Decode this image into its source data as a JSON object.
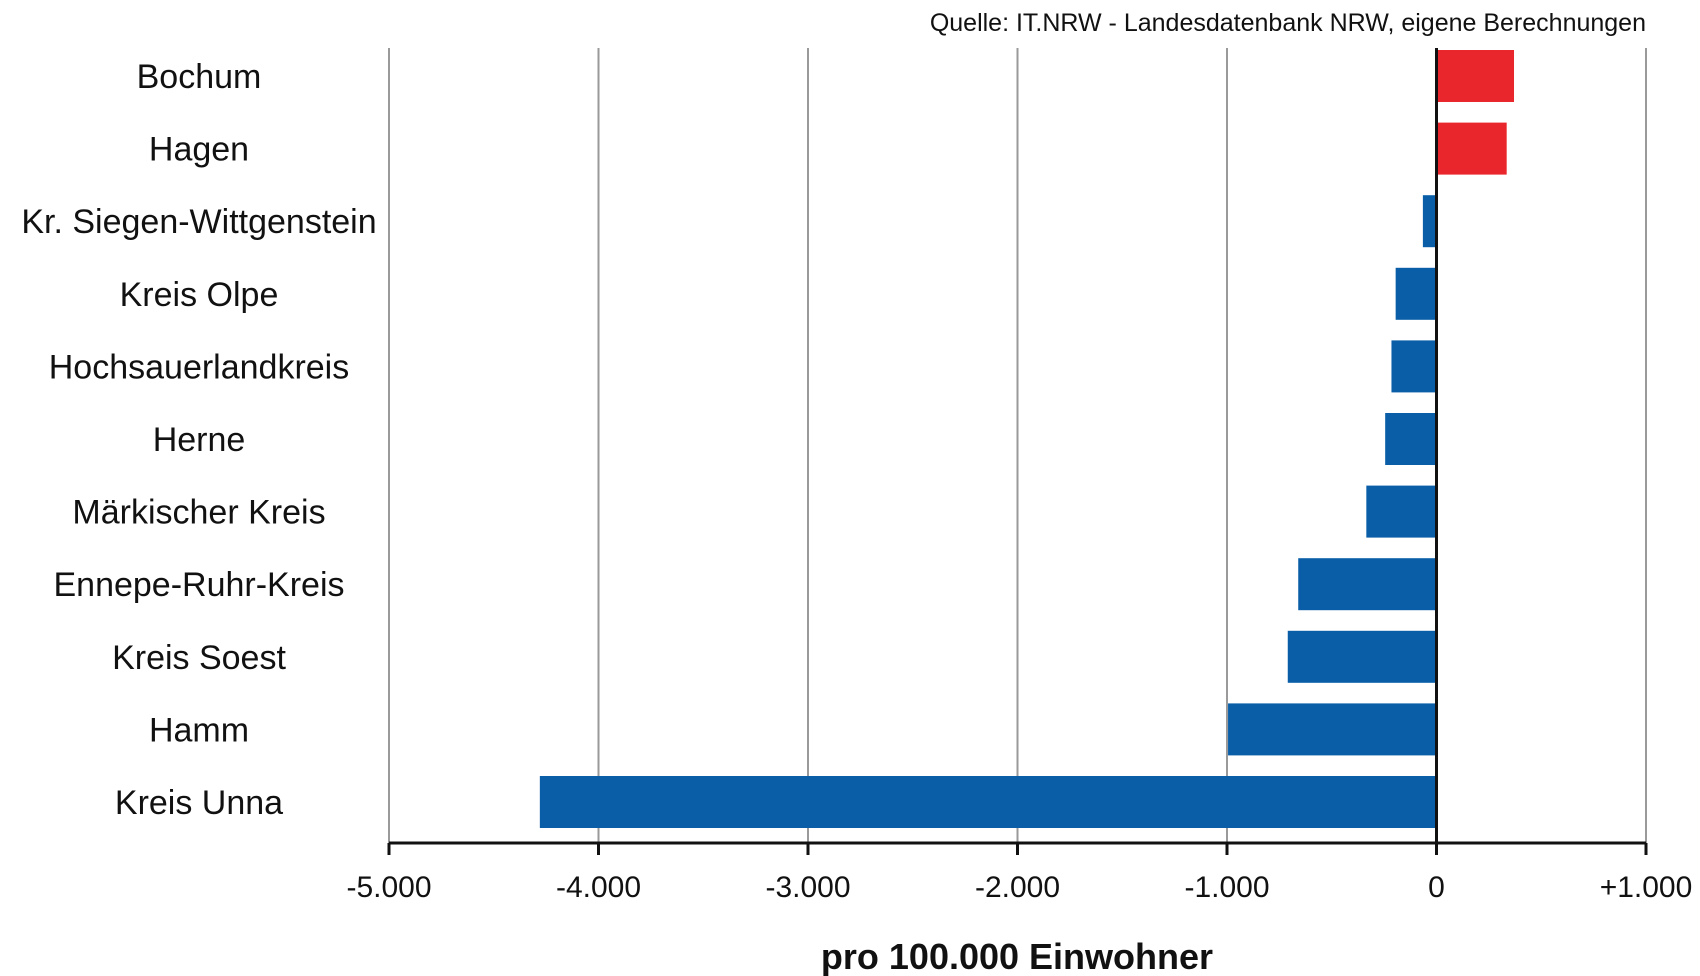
{
  "source_note": "Quelle: IT.NRW - Landesdatenbank NRW, eigene Berechnungen",
  "colors": {
    "positive": "#e8262b",
    "negative": "#0a5ea8"
  },
  "chart_data": {
    "type": "bar",
    "orientation": "horizontal",
    "categories": [
      "Bochum",
      "Hagen",
      "Kr. Siegen-Wittgenstein",
      "Kreis Olpe",
      "Hochsauerlandkreis",
      "Herne",
      "Märkischer Kreis",
      "Ennepe-Ruhr-Kreis",
      "Kreis Soest",
      "Hamm",
      "Kreis Unna"
    ],
    "values": [
      370,
      335,
      -65,
      -195,
      -215,
      -245,
      -335,
      -660,
      -710,
      -995,
      -4280
    ],
    "xlim": [
      -5000,
      1000
    ],
    "xticks": [
      -5000,
      -4000,
      -3000,
      -2000,
      -1000,
      0,
      1000
    ],
    "xtick_labels": [
      "-5.000",
      "-4.000",
      "-3.000",
      "-2.000",
      "-1.000",
      "0",
      "+1.000"
    ],
    "xlabel": "pro 100.000 Einwohner",
    "ylabel": "",
    "title": "",
    "grid": true
  }
}
